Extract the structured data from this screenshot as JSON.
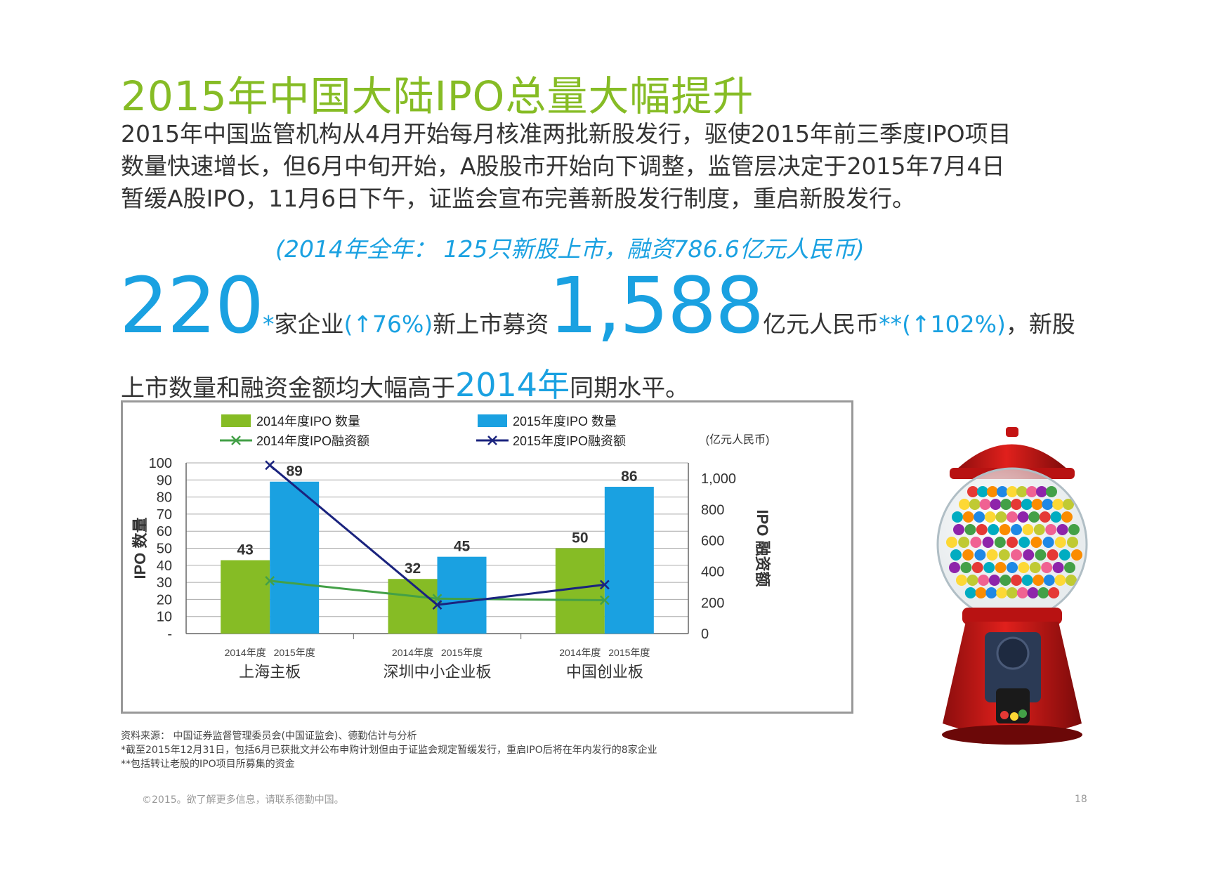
{
  "title": "2015年中国大陆IPO总量大幅提升",
  "intro_lines": [
    "2015年中国监管机构从4月开始每月核准两批新股发行，驱使2015年前三季度IPO项目",
    "数量快速增长，但6月中旬开始，A股股市开始向下调整，监管层决定于2015年7月4日",
    "暂缓A股IPO，11月6日下午，证监会宣布完善新股发行制度，重启新股发行。"
  ],
  "note_2014": "(2014年全年： 125只新股上市，融资786.6亿元人民币)",
  "stats": {
    "count": "220",
    "count_mark": "*",
    "count_text": "家企业",
    "count_change": "(↑76%)",
    "funds_text": "新上市募资",
    "funds": "1,588",
    "funds_unit": "亿元人民币",
    "funds_mark": "**",
    "funds_change": "(↑102%)",
    "tail": "，新股",
    "line2_a": "上市数量和融资金额均大幅高于",
    "line2_year": "2014年",
    "line2_b": "同期水平。"
  },
  "chart_data": {
    "type": "bar",
    "legend": [
      {
        "label": "2014年度IPO 数量",
        "kind": "bar",
        "color": "#86bc25"
      },
      {
        "label": "2015年度IPO 数量",
        "kind": "bar",
        "color": "#1aa1e1"
      },
      {
        "label": "2014年度IPO融资额",
        "kind": "line",
        "color": "#43a047"
      },
      {
        "label": "2015年度IPO融资额",
        "kind": "line",
        "color": "#1a237e"
      }
    ],
    "categories": [
      "上海主板",
      "深圳中小企业板",
      "中国创业板"
    ],
    "sub_labels": [
      "2014年度",
      "2015年度"
    ],
    "series": [
      {
        "name": "2014年度IPO 数量",
        "values": [
          43,
          32,
          50
        ],
        "color": "#86bc25"
      },
      {
        "name": "2015年度IPO 数量",
        "values": [
          89,
          45,
          86
        ],
        "color": "#1aa1e1"
      }
    ],
    "line_series": [
      {
        "name": "2014年度IPO融资额",
        "values": [
          340,
          225,
          215
        ],
        "color": "#43a047"
      },
      {
        "name": "2015年度IPO融资额",
        "values": [
          1085,
          185,
          315
        ],
        "color": "#1a237e"
      }
    ],
    "ylabel": "IPO 数量",
    "ylabel2": "IPO 融资额",
    "unit_label": "(亿元人民币)",
    "ylim": [
      0,
      100
    ],
    "y_ticks": [
      "-",
      "10",
      "20",
      "30",
      "40",
      "50",
      "60",
      "70",
      "80",
      "90",
      "100"
    ],
    "y2lim": [
      0,
      1100
    ],
    "y2_ticks": [
      "0",
      "200",
      "400",
      "600",
      "800",
      "1,000"
    ],
    "grid": true
  },
  "footnotes": [
    "资料来源： 中国证券监督管理委员会(中国证监会)、德勤估计与分析",
    "*截至2015年12月31日，包括6月已获批文并公布申购计划但由于证监会规定暂缓发行，重启IPO后将在年内发行的8家企业",
    "**包括转让老股的IPO项目所募集的资金"
  ],
  "copyright": "©2015。欲了解更多信息，请联系德勤中国。",
  "page_number": "18"
}
